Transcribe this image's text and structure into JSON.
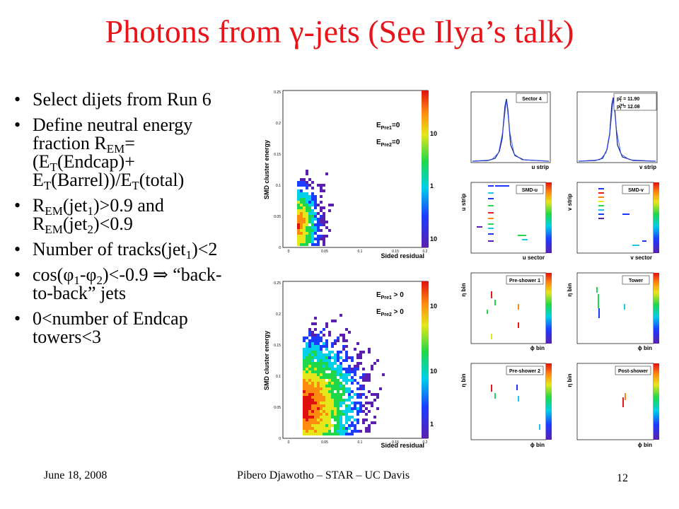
{
  "slide": {
    "title": "Photons from γ-jets (See Ilya’s talk)",
    "footer_date": "June 18, 2008",
    "footer_center": "Pibero Djawotho – STAR – UC Davis",
    "page_number": "12"
  },
  "bullets": {
    "b1": "Select dijets from Run 6",
    "b2": {
      "t1": "Define neutral energy fraction R",
      "s1": "EM",
      "t2": "=(E",
      "s2": "T",
      "t3": "(Endcap)+ E",
      "s3": "T",
      "t4": "(Barrel))/E",
      "s4": "T",
      "t5": "(total)"
    },
    "b3": {
      "t1": "R",
      "s1": "EM",
      "t2": "(jet",
      "s2": "1",
      "t3": ")>0.9 and R",
      "s3": "EM",
      "t4": "(jet",
      "s4": "2",
      "t5": ")<0.9"
    },
    "b4": {
      "t1": "Number of tracks(jet",
      "s1": "1",
      "t2": ")<2"
    },
    "b5": {
      "t1": "cos(φ",
      "s1": "1",
      "t2": "-φ",
      "s2": "2",
      "t3": ")<-0.9 ⇒ “back-to-back” jets"
    },
    "b6": "0<number of Endcap towers<3"
  },
  "plots": {
    "top": {
      "ylabel": "SMD cluster energy",
      "xlabel": "Sided residual",
      "legend1": "E",
      "legend1_sub": "Pre1",
      "legend1_rest": "=0",
      "legend2": "E",
      "legend2_sub": "Pre2",
      "legend2_rest": "=0",
      "yticks": [
        "0.25",
        "0.2",
        "0.15",
        "0.1",
        "0.05",
        "0"
      ],
      "xticks": [
        "0",
        "0.05",
        "0.1",
        "0.15",
        "0.2"
      ],
      "zticks": [
        "10",
        "1",
        "10"
      ]
    },
    "bottom": {
      "ylabel": "SMD cluster energy",
      "xlabel": "Sided residual",
      "legend1": "E",
      "legend1_sub": "Pre1",
      "legend1_rest": " > 0",
      "legend2": "E",
      "legend2_sub": "Pre2",
      "legend2_rest": " > 0",
      "yticks": [
        "0.25",
        "0.2",
        "0.15",
        "0.1",
        "0.05",
        "0"
      ],
      "xticks": [
        "0",
        "0.05",
        "0.1",
        "0.15",
        "0.2"
      ],
      "zticks": [
        "10",
        "10",
        "1"
      ]
    },
    "panels": {
      "sector4": {
        "label": "Sector 4",
        "xlabel": "u strip"
      },
      "pt": {
        "line1": "p",
        "line1_sup": "γ",
        "line1_sub": "T",
        "line1_val": " = 11.90",
        "line2": "p",
        "line2_sup": "jet",
        "line2_sub": "T",
        "line2_val": " = 12.08",
        "xlabel": "v strip"
      },
      "smdu": {
        "label": "SMD-u",
        "xlabel": "u sector",
        "ylabel": "u strip"
      },
      "smdv": {
        "label": "SMD-v",
        "xlabel": "v sector",
        "ylabel": "v strip"
      },
      "pre1": {
        "label": "Pre-shower 1",
        "xlabel": "ϕ bin",
        "ylabel": "η bin"
      },
      "tower": {
        "label": "Tower",
        "xlabel": "ϕ bin",
        "ylabel": "η bin"
      },
      "pre2": {
        "label": "Pre-shower 2",
        "xlabel": "ϕ bin",
        "ylabel": "η bin"
      },
      "post": {
        "label": "Post-shower",
        "xlabel": "ϕ bin",
        "ylabel": "η bin"
      }
    }
  }
}
